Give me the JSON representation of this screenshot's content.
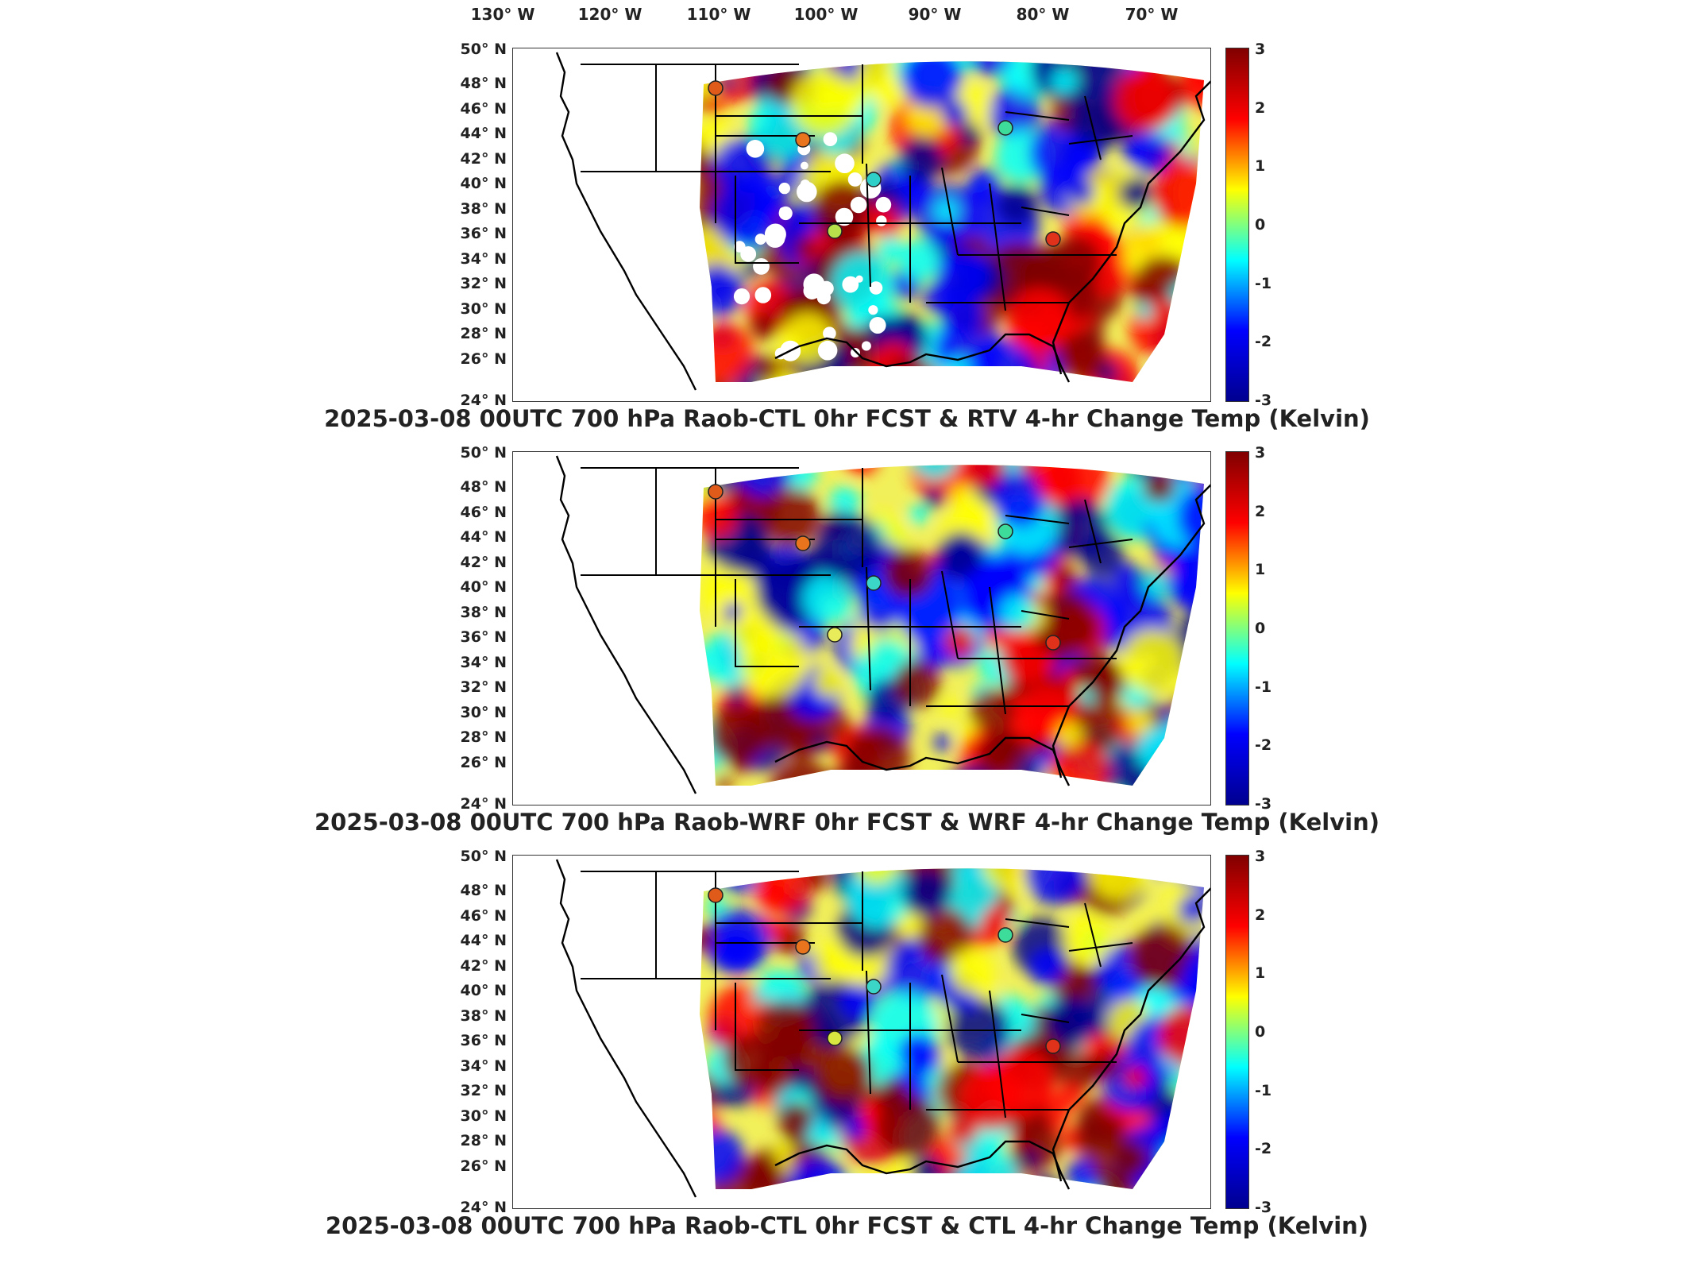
{
  "longitude_labels": [
    "130° W",
    "120° W",
    "110° W",
    "100° W",
    "90° W",
    "80° W",
    "70° W"
  ],
  "latitude_labels": [
    "50° N",
    "48° N",
    "46° N",
    "44° N",
    "42° N",
    "40° N",
    "38° N",
    "36° N",
    "34° N",
    "32° N",
    "30° N",
    "28° N",
    "26° N",
    "24° N"
  ],
  "colorbar": {
    "ticks": [
      "3",
      "2",
      "1",
      "0",
      "-1",
      "-2",
      "-3"
    ],
    "range": [
      -3,
      3
    ],
    "colormap": "jet",
    "colors": [
      "#00008f",
      "#0000ff",
      "#00ffff",
      "#ffff00",
      "#ff0000",
      "#800000"
    ]
  },
  "panels": [
    {
      "title": "2025-03-08 00UTC 700 hPa Raob-CTL 0hr FCST & RTV 4-hr Change Temp (Kelvin)",
      "field": "RTV"
    },
    {
      "title": "2025-03-08 00UTC 700 hPa Raob-WRF 0hr FCST & WRF 4-hr Change Temp (Kelvin)",
      "field": "WRF"
    },
    {
      "title": "2025-03-08 00UTC 700 hPa Raob-CTL 0hr FCST & CTL 4-hr Change Temp (Kelvin)",
      "field": "CTL"
    }
  ]
}
